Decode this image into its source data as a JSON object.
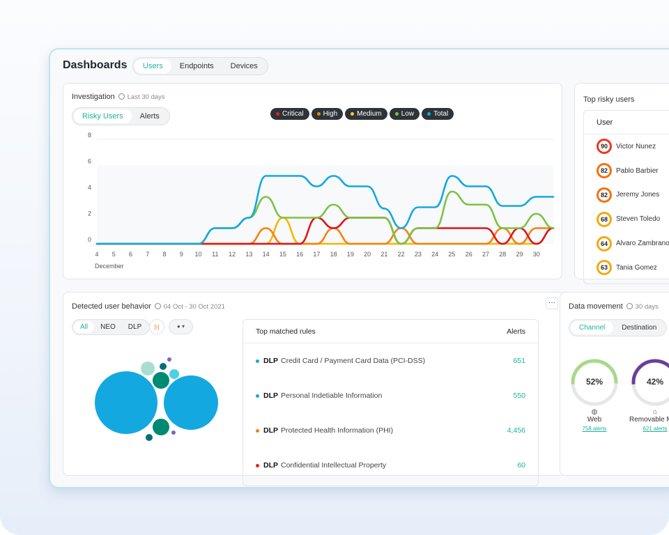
{
  "header": {
    "title": "Dashboards",
    "tabs": [
      {
        "label": "Users",
        "active": true
      },
      {
        "label": "Endpoints"
      },
      {
        "label": "Devices"
      }
    ]
  },
  "investigation": {
    "title": "Investigation",
    "subtitle": "Last 30 days",
    "toggle": [
      "Risky Users",
      "Alerts"
    ],
    "legend": [
      {
        "name": "Critical",
        "color": "#e8221b"
      },
      {
        "name": "High",
        "color": "#f5820d"
      },
      {
        "name": "Medium",
        "color": "#f2d21f"
      },
      {
        "name": "Low",
        "color": "#7cc242"
      },
      {
        "name": "Total",
        "color": "#14a8e0"
      }
    ]
  },
  "chart_data": {
    "type": "line",
    "xlabel": "December",
    "ylim": [
      0,
      8
    ],
    "yticks": [
      0,
      2,
      4,
      6,
      8
    ],
    "x": [
      4,
      5,
      6,
      7,
      8,
      9,
      10,
      11,
      12,
      13,
      14,
      15,
      16,
      17,
      18,
      19,
      20,
      21,
      22,
      23,
      24,
      25,
      26,
      27,
      28,
      29,
      30,
      31
    ],
    "xticklabels": [
      "4",
      "5",
      "6",
      "7",
      "8",
      "9",
      "10",
      "11",
      "12",
      "13",
      "14",
      "15",
      "16",
      "17",
      "18",
      "19",
      "20",
      "21",
      "22",
      "23",
      "24",
      "25",
      "26",
      "27",
      "28",
      "29",
      "30",
      ""
    ],
    "series": [
      {
        "name": "Total",
        "color": "#14a8e0",
        "values": [
          0,
          0,
          0,
          0,
          0,
          0,
          0,
          1.2,
          1.2,
          2,
          5.2,
          5.2,
          5.2,
          4.4,
          5.2,
          4.4,
          4.4,
          2.7,
          1.2,
          2.8,
          2.8,
          5.2,
          4.4,
          4.4,
          2.9,
          2.9,
          3.6,
          3.6
        ]
      },
      {
        "name": "Low",
        "color": "#7cc242",
        "values": [
          0,
          0,
          0,
          0,
          0,
          0,
          0,
          1.2,
          1.2,
          2,
          3.6,
          2,
          2,
          2,
          3,
          2,
          2,
          2,
          0,
          1.2,
          1.2,
          4,
          3,
          3,
          1.2,
          1.2,
          2.3,
          1.2
        ]
      },
      {
        "name": "Critical",
        "color": "#e0151b",
        "values": [
          0,
          0,
          0,
          0,
          0,
          0,
          0,
          0,
          0,
          0,
          0,
          0,
          0,
          2,
          1.2,
          2,
          2,
          2,
          0,
          1.2,
          1.2,
          1.2,
          1.2,
          1.2,
          0,
          1.2,
          0,
          1.2
        ]
      },
      {
        "name": "High",
        "color": "#f5820d",
        "values": [
          0,
          0,
          0,
          0,
          0,
          0,
          0,
          0,
          0,
          0,
          1.2,
          0,
          0,
          0,
          1.2,
          0,
          0,
          0,
          1.2,
          0,
          0,
          0,
          0,
          0,
          1.2,
          0,
          1.2,
          1.2
        ]
      },
      {
        "name": "Medium",
        "color": "#f2b705",
        "values": [
          0,
          0,
          0,
          0,
          0,
          0,
          0,
          0,
          0,
          0,
          0,
          2,
          0,
          0,
          0,
          0,
          0,
          0,
          0,
          0,
          0,
          0,
          0,
          0,
          0,
          0,
          0,
          1.2
        ]
      }
    ]
  },
  "risky": {
    "title": "Top risky users",
    "column": "User",
    "users": [
      {
        "score": "90",
        "name": "Victor Nunez",
        "color": "#f2361c"
      },
      {
        "score": "82",
        "name": "Pablo Barbier",
        "color": "#f5720d"
      },
      {
        "score": "82",
        "name": "Jeremy Jones",
        "color": "#f5720d"
      },
      {
        "score": "68",
        "name": "Steven Toledo",
        "color": "#f5a90d"
      },
      {
        "score": "64",
        "name": "Alvaro Zambrano",
        "color": "#f5a90d"
      },
      {
        "score": "63",
        "name": "Tania Gomez",
        "color": "#f5a90d"
      }
    ]
  },
  "behavior": {
    "title": "Detected user behavior",
    "subtitle": "04 Oct - 30 Oct 2021",
    "filters": [
      "All",
      "NEO",
      "DLP"
    ],
    "more": "···",
    "table": {
      "col1": "Top matched rules",
      "col2": "Alerts",
      "rows": [
        {
          "tag": "DLP",
          "name": "Credit Card / Payment Card Data (PCI-DSS)",
          "value": "651",
          "color": "#14a8e0"
        },
        {
          "tag": "DLP",
          "name": "Personal Indetiable Information",
          "value": "550",
          "color": "#14a8e0"
        },
        {
          "tag": "DLP",
          "name": "Protected Health Information (PHI)",
          "value": "4,456",
          "color": "#f5820d"
        },
        {
          "tag": "DLP",
          "name": "Confidential Intellectual Property",
          "value": "60",
          "color": "#e8221b"
        }
      ]
    }
  },
  "movement": {
    "title": "Data movement",
    "subtitle": "30 days",
    "toggle": [
      "Channel",
      "Destination"
    ],
    "gauges": [
      {
        "percent": 52,
        "label": "52%",
        "name": "Web",
        "alerts": "758 alerts",
        "color": "#a8d88a",
        "icon": "globe-icon"
      },
      {
        "percent": 42,
        "label": "42%",
        "name": "Removable Media",
        "alerts": "621 alerts",
        "color": "#6a3f9a",
        "icon": "usb-icon"
      }
    ]
  }
}
